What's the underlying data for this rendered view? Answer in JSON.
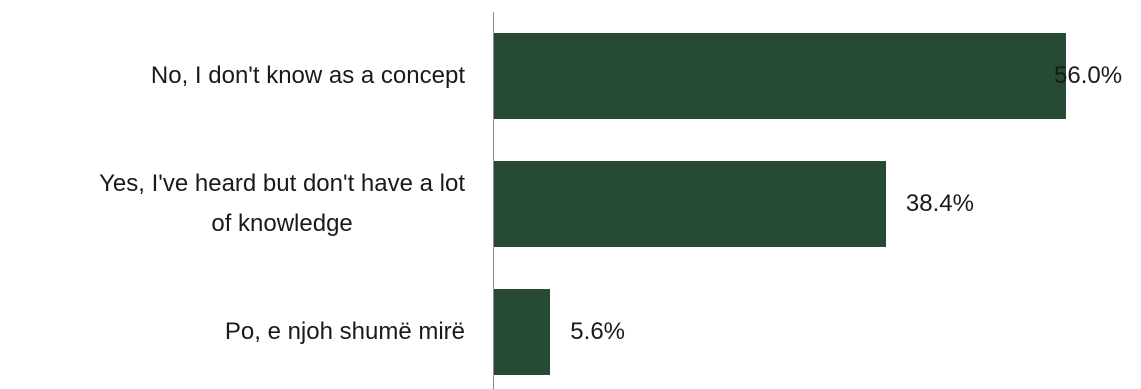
{
  "chart_data": {
    "type": "bar",
    "orientation": "horizontal",
    "categories": [
      "No, I don't know as a concept",
      "Yes, I've heard but don't have a lot of knowledge",
      "Po, e njoh shumë mirë"
    ],
    "category_lines": [
      [
        "No, I don't know as a concept"
      ],
      [
        "Yes, I've heard but don't have a lot",
        "of knowledge"
      ],
      [
        "Po, e njoh shumë mirë"
      ]
    ],
    "values": [
      56.0,
      38.4,
      5.6
    ],
    "value_labels": [
      "56.0%",
      "38.4%",
      "5.6%"
    ],
    "xlim": [
      0,
      56.0
    ],
    "grid": false,
    "legend": "none",
    "bar_color": "#264a33",
    "text_color": "#1a1a1a",
    "axis_color": "#8c8c8c"
  }
}
